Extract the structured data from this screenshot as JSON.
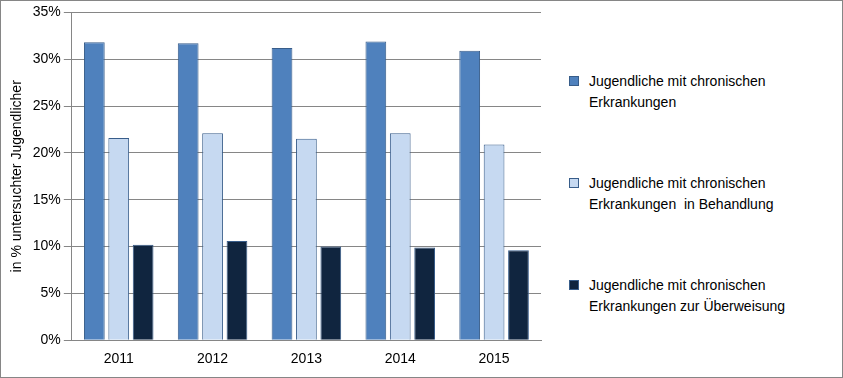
{
  "chart_data": {
    "type": "bar",
    "y_label": "in % untersuchter Jugendlicher",
    "categories": [
      "2011",
      "2012",
      "2013",
      "2014",
      "2015"
    ],
    "series": [
      {
        "name": "Jugendliche mit chronischen Erkrankungen",
        "color": "#4f81bd",
        "values": [
          31.8,
          31.7,
          31.2,
          31.9,
          30.9
        ]
      },
      {
        "name": "Jugendliche mit chronischen Erkrankungen  in Behandlung",
        "color": "#c6d9f1",
        "values": [
          21.6,
          22.1,
          21.5,
          22.1,
          20.9
        ]
      },
      {
        "name": "Jugendliche mit chronischen Erkrankungen zur Überweisung",
        "color": "#10253f",
        "values": [
          10.2,
          10.6,
          10.0,
          9.9,
          9.6
        ]
      }
    ],
    "ylim": [
      0,
      35
    ],
    "yticks": [
      {
        "value": 0,
        "label": "0%"
      },
      {
        "value": 5,
        "label": "5%"
      },
      {
        "value": 10,
        "label": "10%"
      },
      {
        "value": 15,
        "label": "15%"
      },
      {
        "value": 20,
        "label": "20%"
      },
      {
        "value": 25,
        "label": "25%"
      },
      {
        "value": 30,
        "label": "30%"
      },
      {
        "value": 35,
        "label": "35%"
      }
    ],
    "grid": true,
    "legend": "right"
  }
}
